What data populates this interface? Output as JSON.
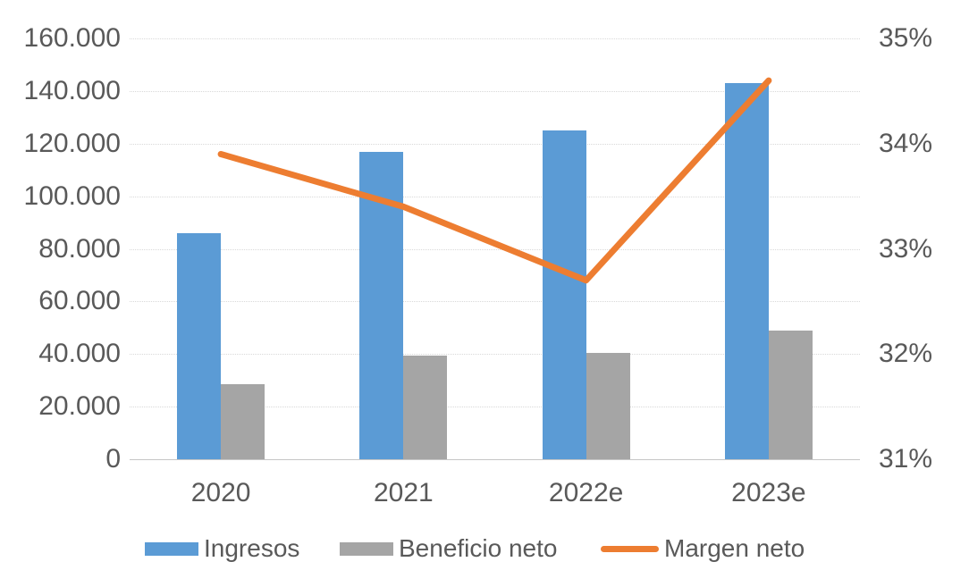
{
  "chart_data": {
    "type": "combo",
    "categories": [
      "2020",
      "2021",
      "2022e",
      "2023e"
    ],
    "series": [
      {
        "name": "Ingresos",
        "type": "bar",
        "axis": "left",
        "color": "#5B9BD5",
        "values": [
          86000,
          117000,
          125000,
          143000
        ]
      },
      {
        "name": "Beneficio neto",
        "type": "bar",
        "axis": "left",
        "color": "#A5A5A5",
        "values": [
          28500,
          39500,
          40500,
          49000
        ]
      },
      {
        "name": "Margen neto",
        "type": "line",
        "axis": "right",
        "color": "#ED7D31",
        "unit": "%",
        "values": [
          33.9,
          33.4,
          32.7,
          34.6
        ]
      }
    ],
    "left_axis": {
      "min": 0,
      "max": 160000,
      "step": 20000,
      "tick_labels": [
        "160.000",
        "140.000",
        "120.000",
        "100.000",
        "80.000",
        "60.000",
        "40.000",
        "20.000",
        "0"
      ]
    },
    "right_axis": {
      "min": 31,
      "max": 35,
      "step": 1,
      "tick_labels": [
        "35%",
        "34%",
        "33%",
        "32%",
        "31%"
      ]
    },
    "legend": {
      "position": "bottom",
      "items": [
        "Ingresos",
        "Beneficio neto",
        "Margen neto"
      ]
    },
    "grid": true,
    "colors": {
      "bar_blue": "#5B9BD5",
      "bar_gray": "#A5A5A5",
      "line_orange": "#ED7D31",
      "text": "#595959",
      "gridline": "#D9D9D9",
      "axis_line": "#C6C6C6"
    }
  }
}
